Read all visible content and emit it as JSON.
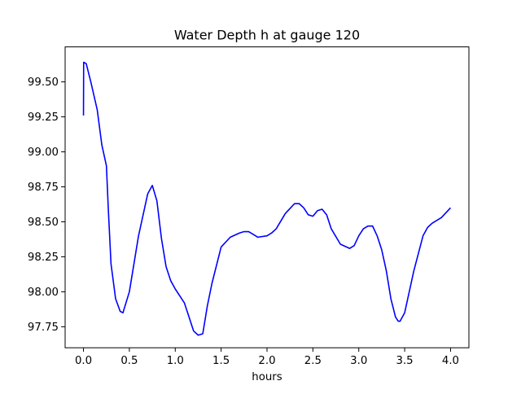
{
  "chart_data": {
    "type": "line",
    "title": "Water Depth h at gauge 120",
    "xlabel": "hours",
    "ylabel": "",
    "xlim": [
      -0.2,
      4.2
    ],
    "ylim": [
      97.6,
      99.75
    ],
    "xticks": [
      0.0,
      0.5,
      1.0,
      1.5,
      2.0,
      2.5,
      3.0,
      3.5,
      4.0
    ],
    "xtick_labels": [
      "0.0",
      "0.5",
      "1.0",
      "1.5",
      "2.0",
      "2.5",
      "3.0",
      "3.5",
      "4.0"
    ],
    "yticks": [
      97.75,
      98.0,
      98.25,
      98.5,
      98.75,
      99.0,
      99.25,
      99.5
    ],
    "ytick_labels": [
      "97.75",
      "98.00",
      "98.25",
      "98.50",
      "98.75",
      "99.00",
      "99.25",
      "99.50"
    ],
    "grid": false,
    "legend": "none",
    "series": [
      {
        "color": "#0000ff",
        "x": [
          0.0,
          0.002,
          0.03,
          0.08,
          0.15,
          0.2,
          0.25,
          0.27,
          0.3,
          0.35,
          0.4,
          0.43,
          0.5,
          0.6,
          0.7,
          0.75,
          0.8,
          0.85,
          0.9,
          0.95,
          1.0,
          1.05,
          1.1,
          1.15,
          1.2,
          1.25,
          1.3,
          1.35,
          1.4,
          1.5,
          1.6,
          1.7,
          1.75,
          1.8,
          1.85,
          1.9,
          2.0,
          2.05,
          2.1,
          2.2,
          2.3,
          2.35,
          2.4,
          2.45,
          2.5,
          2.55,
          2.6,
          2.65,
          2.7,
          2.8,
          2.9,
          2.95,
          3.0,
          3.05,
          3.1,
          3.15,
          3.2,
          3.25,
          3.3,
          3.35,
          3.4,
          3.43,
          3.45,
          3.5,
          3.6,
          3.7,
          3.75,
          3.8,
          3.9,
          4.0
        ],
        "y": [
          99.26,
          99.64,
          99.63,
          99.5,
          99.3,
          99.05,
          98.9,
          98.6,
          98.2,
          97.95,
          97.86,
          97.85,
          98.0,
          98.4,
          98.7,
          98.76,
          98.65,
          98.38,
          98.18,
          98.08,
          98.02,
          97.97,
          97.92,
          97.82,
          97.72,
          97.69,
          97.7,
          97.9,
          98.06,
          98.32,
          98.39,
          98.42,
          98.43,
          98.43,
          98.41,
          98.39,
          98.4,
          98.42,
          98.45,
          98.56,
          98.63,
          98.63,
          98.6,
          98.55,
          98.54,
          98.58,
          98.59,
          98.55,
          98.45,
          98.34,
          98.31,
          98.33,
          98.4,
          98.45,
          98.47,
          98.47,
          98.4,
          98.3,
          98.15,
          97.95,
          97.82,
          97.79,
          97.79,
          97.85,
          98.15,
          98.4,
          98.46,
          98.49,
          98.53,
          98.6
        ]
      }
    ]
  }
}
